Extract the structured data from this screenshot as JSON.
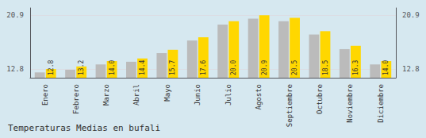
{
  "chart_data": {
    "type": "bar",
    "title": "Temperaturas Medias en bufali",
    "categories": [
      "Enero",
      "Febrero",
      "Marzo",
      "Abril",
      "Mayo",
      "Junio",
      "Julio",
      "Agosto",
      "Septiembre",
      "Octubre",
      "Noviembre",
      "Diciembre"
    ],
    "series": [
      {
        "color": "#BBBBBB",
        "values": [
          12.3,
          12.7,
          13.5,
          13.9,
          15.2,
          17.1,
          19.5,
          20.4,
          20.0,
          18.0,
          15.8,
          13.5
        ]
      },
      {
        "color": "#FFD700",
        "values": [
          12.8,
          13.2,
          14.0,
          14.4,
          15.7,
          17.6,
          20.0,
          20.9,
          20.5,
          18.5,
          16.3,
          14.0
        ],
        "data_labels": true,
        "value_labels": [
          "12.8",
          "13.2",
          "14.0",
          "14.4",
          "15.7",
          "17.6",
          "20.0",
          "20.9",
          "20.5",
          "18.5",
          "16.3",
          "14.0"
        ]
      }
    ],
    "ylim": [
      11.5,
      22.0
    ],
    "yticks": [
      12.8,
      20.9
    ],
    "y2lim": [
      11.5,
      22.0
    ],
    "y2ticks": [
      12.8,
      20.9
    ],
    "grid": true
  }
}
